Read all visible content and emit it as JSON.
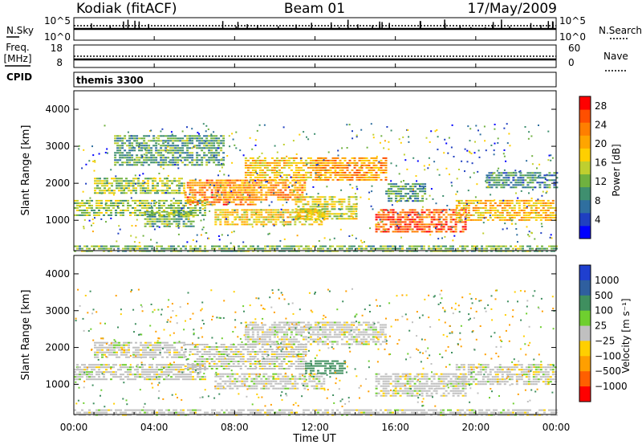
{
  "header": {
    "station": "Kodiak (fitACF)",
    "beam": "Beam 01",
    "date": "17/May/2009"
  },
  "noise_panel": {
    "left_label": "N.Sky",
    "left_ticks": [
      "10^5",
      "10^0"
    ],
    "right_ticks": [
      "10^5",
      "10^0"
    ],
    "right_label": "N.Search"
  },
  "freq_panel": {
    "left_label_top": "Freq.",
    "left_label_units": "[MHz]",
    "left_ticks": [
      "18",
      "8"
    ],
    "right_ticks": [
      "60",
      "0"
    ],
    "right_label": "Nave"
  },
  "cpid_panel": {
    "label": "CPID",
    "value": "themis 3300"
  },
  "x_axis": {
    "label": "Time UT",
    "ticks": [
      "00:00",
      "04:00",
      "08:00",
      "12:00",
      "16:00",
      "20:00",
      "00:00"
    ],
    "range_hours": [
      0,
      24
    ]
  },
  "colors": {
    "power": [
      "#0000ff",
      "#1f3fc0",
      "#2f6f9f",
      "#3f8f6f",
      "#6fb13f",
      "#bfcf2f",
      "#ffcf00",
      "#ffa500",
      "#ff7f00",
      "#ff4f00",
      "#ff0000"
    ],
    "velocity_pos": [
      "#1f3fcf",
      "#2f5f9f",
      "#3f8f5f",
      "#6fcf2f"
    ],
    "velocity_neutral": "#c0c0c0",
    "velocity_neg": [
      "#ffcf00",
      "#ff9f00",
      "#ff5f00",
      "#ff0000"
    ]
  },
  "chart_data": [
    {
      "type": "heatmap",
      "name": "power",
      "ylabel": "Slant Range [km]",
      "ylim": [
        180,
        4500
      ],
      "yticks": [
        1000,
        2000,
        3000,
        4000
      ],
      "colorbar": {
        "label": "Power [dB]",
        "range": [
          0,
          30
        ],
        "ticks": [
          4,
          8,
          12,
          16,
          20,
          24,
          28
        ]
      },
      "bands": [
        {
          "t0": 0.0,
          "t1": 6.5,
          "r0": 1150,
          "r1": 1550,
          "v": 13
        },
        {
          "t0": 1.0,
          "t1": 5.5,
          "r0": 1750,
          "r1": 2150,
          "v": 14
        },
        {
          "t0": 3.5,
          "t1": 6.0,
          "r0": 800,
          "r1": 1250,
          "v": 11
        },
        {
          "t0": 5.5,
          "t1": 9.0,
          "r0": 1400,
          "r1": 2100,
          "v": 24
        },
        {
          "t0": 7.0,
          "t1": 11.5,
          "r0": 1550,
          "r1": 2100,
          "v": 22
        },
        {
          "t0": 7.0,
          "t1": 12.5,
          "r0": 900,
          "r1": 1300,
          "v": 18
        },
        {
          "t0": 8.5,
          "t1": 12.5,
          "r0": 2100,
          "r1": 2700,
          "v": 19
        },
        {
          "t0": 12.0,
          "t1": 15.5,
          "r0": 2100,
          "r1": 2700,
          "v": 22
        },
        {
          "t0": 11.0,
          "t1": 14.0,
          "r0": 1000,
          "r1": 1650,
          "v": 16
        },
        {
          "t0": 15.0,
          "t1": 19.5,
          "r0": 650,
          "r1": 1300,
          "v": 27
        },
        {
          "t0": 15.5,
          "t1": 17.5,
          "r0": 1500,
          "r1": 2000,
          "v": 9
        },
        {
          "t0": 19.0,
          "t1": 24.0,
          "r0": 1000,
          "r1": 1550,
          "v": 20
        },
        {
          "t0": 2.0,
          "t1": 7.5,
          "r0": 2500,
          "r1": 3300,
          "v": 10
        },
        {
          "t0": 20.5,
          "t1": 24.0,
          "r0": 1900,
          "r1": 2300,
          "v": 8
        },
        {
          "t0": 0.0,
          "t1": 24.0,
          "r0": 180,
          "r1": 320,
          "v": 12
        }
      ]
    },
    {
      "type": "heatmap",
      "name": "velocity",
      "ylabel": "Slant Range [km]",
      "ylim": [
        180,
        4500
      ],
      "yticks": [
        1000,
        2000,
        3000,
        4000
      ],
      "colorbar": {
        "label": "Velocity [m s⁻¹]",
        "ticks": [
          "1000",
          "500",
          "100",
          "25",
          "−25",
          "−100",
          "−500",
          "−1000"
        ]
      },
      "bands": [
        {
          "t0": 0.0,
          "t1": 6.5,
          "r0": 1150,
          "r1": 1550,
          "v": 0
        },
        {
          "t0": 1.0,
          "t1": 5.5,
          "r0": 1750,
          "r1": 2150,
          "v": 0
        },
        {
          "t0": 5.5,
          "t1": 11.5,
          "r0": 1400,
          "r1": 2100,
          "v": 0
        },
        {
          "t0": 7.0,
          "t1": 12.5,
          "r0": 900,
          "r1": 1300,
          "v": 0
        },
        {
          "t0": 8.5,
          "t1": 15.5,
          "r0": 2100,
          "r1": 2700,
          "v": 0
        },
        {
          "t0": 11.5,
          "t1": 13.5,
          "r0": 1300,
          "r1": 1650,
          "v": 300
        },
        {
          "t0": 15.0,
          "t1": 19.5,
          "r0": 650,
          "r1": 1300,
          "v": 0
        },
        {
          "t0": 19.0,
          "t1": 24.0,
          "r0": 1000,
          "r1": 1550,
          "v": 0
        },
        {
          "t0": 0.0,
          "t1": 24.0,
          "r0": 180,
          "r1": 320,
          "v": 0
        }
      ]
    }
  ]
}
